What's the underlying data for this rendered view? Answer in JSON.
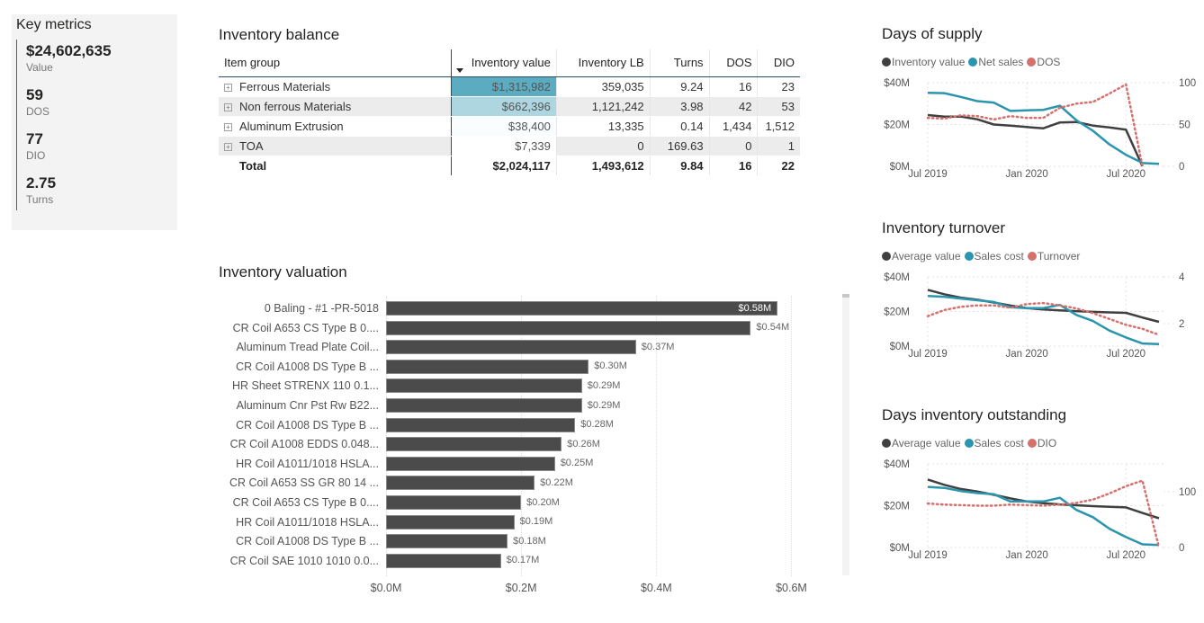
{
  "key_metrics": {
    "title": "Key metrics",
    "items": [
      {
        "value": "$24,602,635",
        "label": "Value"
      },
      {
        "value": "59",
        "label": "DOS"
      },
      {
        "value": "77",
        "label": "DIO"
      },
      {
        "value": "2.75",
        "label": "Turns"
      }
    ]
  },
  "inventory_balance": {
    "title": "Inventory balance",
    "columns": [
      "Item group",
      "Inventory value",
      "Inventory LB",
      "Turns",
      "DOS",
      "DIO"
    ],
    "sort_column": "Inventory value",
    "rows": [
      {
        "group": "Ferrous Materials",
        "value": "$1,315,982",
        "lb": "359,035",
        "turns": "9.24",
        "dos": "16",
        "dio": "23",
        "heat": 1.0
      },
      {
        "group": "Non ferrous Materials",
        "value": "$662,396",
        "lb": "1,121,242",
        "turns": "3.98",
        "dos": "42",
        "dio": "53",
        "heat": 0.5
      },
      {
        "group": "Aluminum Extrusion",
        "value": "$38,400",
        "lb": "13,335",
        "turns": "0.14",
        "dos": "1,434",
        "dio": "1,512",
        "heat": 0.03
      },
      {
        "group": "TOA",
        "value": "$7,339",
        "lb": "0",
        "turns": "169.63",
        "dos": "0",
        "dio": "1",
        "heat": 0.0
      }
    ],
    "total": {
      "label": "Total",
      "value": "$2,024,117",
      "lb": "1,493,612",
      "turns": "9.84",
      "dos": "16",
      "dio": "22"
    },
    "heat_colors": {
      "high": "#5bacc0",
      "low": "#ffffff"
    }
  },
  "inventory_valuation": {
    "title": "Inventory valuation",
    "chart_data": {
      "type": "bar",
      "orientation": "horizontal",
      "title": "Inventory valuation",
      "categories": [
        "0 Baling - #1 -PR-5018",
        "CR Coil A653 CS Type B 0....",
        "Aluminum Tread Plate Coil...",
        "CR Coil A1008 DS Type B ...",
        "HR Sheet STRENX 110 0.1...",
        "Aluminum Cnr Pst Rw B22...",
        "CR Coil A1008 DS Type B ...",
        "CR Coil A1008 EDDS 0.048...",
        "HR Coil A1011/1018 HSLA...",
        "CR Coil A653 SS GR 80 14 ...",
        "CR Coil A653 CS Type B 0....",
        "HR Coil A1011/1018 HSLA...",
        "CR Coil A1008 DS Type B ...",
        "CR Coil SAE 1010 1010 0.0..."
      ],
      "values": [
        0.58,
        0.54,
        0.37,
        0.3,
        0.29,
        0.29,
        0.28,
        0.26,
        0.25,
        0.22,
        0.2,
        0.19,
        0.18,
        0.17
      ],
      "value_labels": [
        "$0.58M",
        "$0.54M",
        "$0.37M",
        "$0.30M",
        "$0.29M",
        "$0.29M",
        "$0.28M",
        "$0.26M",
        "$0.25M",
        "$0.22M",
        "$0.20M",
        "$0.19M",
        "$0.18M",
        "$0.17M"
      ],
      "xlim": [
        0,
        0.63
      ],
      "xticks": [
        0,
        0.2,
        0.4,
        0.6
      ],
      "xtick_labels": [
        "$0.0M",
        "$0.2M",
        "$0.4M",
        "$0.6M"
      ],
      "unit": "$M",
      "bar_color": "#4b4b4b",
      "grid": true
    }
  },
  "chart_data": [
    {
      "id": "days_of_supply",
      "type": "line",
      "title": "Days of supply",
      "x": [
        "Jul 2019",
        "Aug 2019",
        "Sep 2019",
        "Oct 2019",
        "Nov 2019",
        "Dec 2019",
        "Jan 2020",
        "Feb 2020",
        "Mar 2020",
        "Apr 2020",
        "May 2020",
        "Jun 2020",
        "Jul 2020",
        "Aug 2020",
        "Sep 2020"
      ],
      "xtick_labels": [
        "Jul 2019",
        "Jan 2020",
        "Jul 2020"
      ],
      "y_left": {
        "ylim": [
          0,
          40
        ],
        "ticks": [
          0,
          20,
          40
        ],
        "tick_labels": [
          "$0M",
          "$20M",
          "$40M"
        ],
        "unit": "$M"
      },
      "y_right": {
        "ylim": [
          0,
          100
        ],
        "ticks": [
          0,
          50,
          100
        ],
        "tick_labels": [
          "0",
          "50",
          "100"
        ]
      },
      "series": [
        {
          "name": "Inventory value",
          "axis": "left",
          "color": "#404040",
          "style": "solid",
          "values": [
            24.5,
            23.8,
            23.8,
            22.5,
            20.0,
            19.5,
            18.8,
            18.2,
            21.0,
            21.2,
            19.5,
            18.6,
            17.5,
            0,
            null
          ]
        },
        {
          "name": "Net sales",
          "axis": "left",
          "color": "#2a95ad",
          "style": "solid",
          "values": [
            35.2,
            35.0,
            33.2,
            31.2,
            30.5,
            26.5,
            26.8,
            27.0,
            29.0,
            22.0,
            17.0,
            10.5,
            5.5,
            1.6,
            1.2
          ]
        },
        {
          "name": "DOS",
          "axis": "right",
          "color": "#d4716d",
          "style": "dotted",
          "values": [
            58,
            57,
            61,
            60,
            56,
            60,
            58,
            58,
            70,
            75,
            77,
            87,
            98,
            0,
            null
          ]
        }
      ]
    },
    {
      "id": "inventory_turnover",
      "type": "line",
      "title": "Inventory turnover",
      "x": [
        "Jul 2019",
        "Aug 2019",
        "Sep 2019",
        "Oct 2019",
        "Nov 2019",
        "Dec 2019",
        "Jan 2020",
        "Feb 2020",
        "Mar 2020",
        "Apr 2020",
        "May 2020",
        "Jun 2020",
        "Jul 2020",
        "Aug 2020",
        "Sep 2020"
      ],
      "xtick_labels": [
        "Jul 2019",
        "Jan 2020",
        "Jul 2020"
      ],
      "y_left": {
        "ylim": [
          0,
          40
        ],
        "ticks": [
          0,
          20,
          40
        ],
        "tick_labels": [
          "$0M",
          "$20M",
          "$40M"
        ],
        "unit": "$M"
      },
      "y_right": {
        "ylim": [
          1.04,
          4
        ],
        "ticks": [
          2,
          4
        ],
        "tick_labels": [
          "2",
          "4"
        ]
      },
      "series": [
        {
          "name": "Average value",
          "axis": "left",
          "color": "#404040",
          "style": "solid",
          "values": [
            32.5,
            30.0,
            28.0,
            26.8,
            25.2,
            23.5,
            22.0,
            21.2,
            20.6,
            20.2,
            19.8,
            19.5,
            19.2,
            16.5,
            14.0
          ]
        },
        {
          "name": "Sales cost",
          "axis": "left",
          "color": "#2a95ad",
          "style": "solid",
          "values": [
            29.0,
            28.5,
            27.5,
            26.5,
            25.5,
            22.5,
            22.0,
            22.0,
            23.8,
            18.0,
            14.5,
            9.0,
            5.0,
            1.5,
            1.2
          ]
        },
        {
          "name": "Turnover",
          "axis": "right",
          "color": "#d4716d",
          "style": "dotted",
          "values": [
            2.32,
            2.58,
            2.72,
            2.78,
            2.78,
            2.68,
            2.84,
            2.88,
            2.78,
            2.65,
            2.45,
            2.2,
            1.95,
            1.78,
            1.52
          ]
        }
      ]
    },
    {
      "id": "days_inventory_outstanding",
      "type": "line",
      "title": "Days inventory outstanding",
      "x": [
        "Jul 2019",
        "Aug 2019",
        "Sep 2019",
        "Oct 2019",
        "Nov 2019",
        "Dec 2019",
        "Jan 2020",
        "Feb 2020",
        "Mar 2020",
        "Apr 2020",
        "May 2020",
        "Jun 2020",
        "Jul 2020",
        "Aug 2020",
        "Sep 2020"
      ],
      "xtick_labels": [
        "Jul 2019",
        "Jan 2020",
        "Jul 2020"
      ],
      "y_left": {
        "ylim": [
          0,
          40
        ],
        "ticks": [
          0,
          20,
          40
        ],
        "tick_labels": [
          "$0M",
          "$20M",
          "$40M"
        ],
        "unit": "$M"
      },
      "y_right": {
        "ylim": [
          0,
          150
        ],
        "ticks": [
          0,
          100
        ],
        "tick_labels": [
          "0",
          "100"
        ]
      },
      "series": [
        {
          "name": "Average value",
          "axis": "left",
          "color": "#404040",
          "style": "solid",
          "values": [
            32.5,
            30.0,
            28.0,
            26.8,
            25.2,
            23.5,
            22.0,
            21.2,
            20.6,
            20.2,
            19.8,
            19.5,
            19.2,
            16.5,
            14.0
          ]
        },
        {
          "name": "Sales cost",
          "axis": "left",
          "color": "#2a95ad",
          "style": "solid",
          "values": [
            29.0,
            28.5,
            27.0,
            26.0,
            25.5,
            22.0,
            22.0,
            22.0,
            23.8,
            18.0,
            14.5,
            9.0,
            5.0,
            1.5,
            1.2
          ]
        },
        {
          "name": "DIO",
          "axis": "right",
          "color": "#d4716d",
          "style": "dotted",
          "values": [
            79,
            77,
            76,
            75,
            75,
            77,
            76,
            75,
            77,
            80,
            86,
            97,
            110,
            120,
            0
          ]
        }
      ]
    }
  ]
}
